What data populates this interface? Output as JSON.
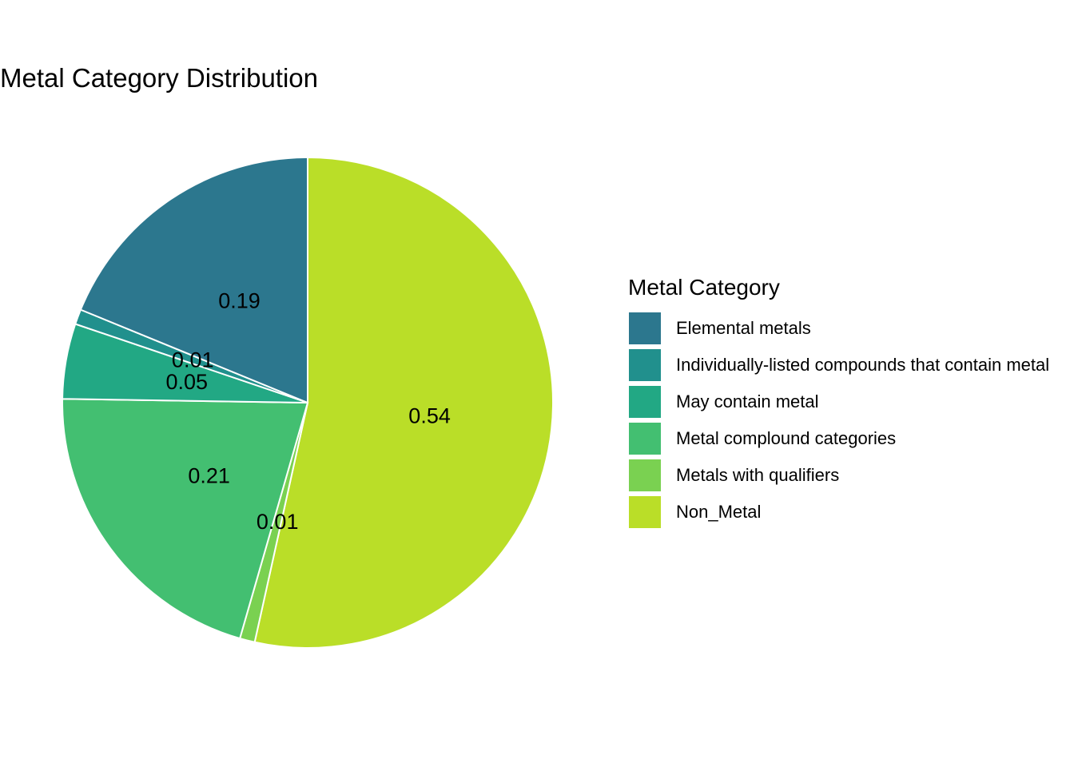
{
  "chart_data": {
    "type": "pie",
    "title": "Metal Category Distribution",
    "legend_title": "Metal Category",
    "legend_position": "right",
    "start": "12 o'clock",
    "direction": "clockwise",
    "slices": [
      {
        "category": "Non_Metal",
        "value": 0.54,
        "label": "0.54",
        "color": "#BADE28"
      },
      {
        "category": "Metals with qualifiers",
        "value": 0.01,
        "label": "0.01",
        "color": "#7AD151"
      },
      {
        "category": "Metal complound categories",
        "value": 0.21,
        "label": "0.21",
        "color": "#43BF71"
      },
      {
        "category": "May contain metal",
        "value": 0.05,
        "label": "0.05",
        "color": "#22A884"
      },
      {
        "category": "Individually-listed compounds that contain metal",
        "value": 0.01,
        "label": "0.01",
        "color": "#21908D"
      },
      {
        "category": "Elemental metals",
        "value": 0.19,
        "label": "0.19",
        "color": "#2C778E"
      }
    ],
    "legend": [
      {
        "label": "Elemental metals",
        "color": "#2C778E"
      },
      {
        "label": "Individually-listed compounds that contain metal",
        "color": "#21908D"
      },
      {
        "label": "May contain metal",
        "color": "#22A884"
      },
      {
        "label": "Metal complound categories",
        "color": "#43BF71"
      },
      {
        "label": "Metals with qualifiers",
        "color": "#7AD151"
      },
      {
        "label": "Non_Metal",
        "color": "#BADE28"
      }
    ]
  }
}
